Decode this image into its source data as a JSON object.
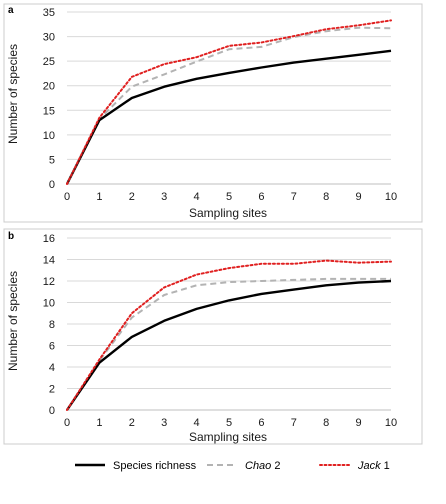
{
  "legend": {
    "series_labels": [
      {
        "parts": [
          {
            "text": "Species richness",
            "italic": false
          }
        ]
      },
      {
        "parts": [
          {
            "text": "Chao",
            "italic": true
          },
          {
            "text": " 2",
            "italic": false
          }
        ]
      },
      {
        "parts": [
          {
            "text": "Jack",
            "italic": true
          },
          {
            "text": " 1",
            "italic": false
          }
        ]
      }
    ]
  },
  "chart_data": [
    {
      "panel": "a",
      "type": "line",
      "xlabel": "Sampling sites",
      "ylabel": "Number of species",
      "x": [
        0,
        1,
        2,
        3,
        4,
        5,
        6,
        7,
        8,
        9,
        10
      ],
      "xlim": [
        0,
        10
      ],
      "ylim": [
        0,
        35
      ],
      "yticks": [
        0,
        5,
        10,
        15,
        20,
        25,
        30,
        35
      ],
      "grid": "horizontal",
      "series": [
        {
          "values": [
            0,
            13.0,
            17.5,
            19.8,
            21.4,
            22.6,
            23.7,
            24.7,
            25.5,
            26.3,
            27.1
          ],
          "color": "#000000",
          "style": "solid"
        },
        {
          "values": [
            0,
            13.2,
            19.8,
            22.3,
            24.9,
            27.4,
            27.9,
            29.9,
            31.1,
            31.8,
            31.7
          ],
          "color": "#b3b3b3",
          "style": "dashed"
        },
        {
          "values": [
            0,
            13.5,
            21.8,
            24.4,
            25.8,
            28.1,
            28.8,
            30.1,
            31.5,
            32.3,
            33.3
          ],
          "color": "#e02020",
          "style": "dotted"
        }
      ]
    },
    {
      "panel": "b",
      "type": "line",
      "xlabel": "Sampling sites",
      "ylabel": "Number of species",
      "x": [
        0,
        1,
        2,
        3,
        4,
        5,
        6,
        7,
        8,
        9,
        10
      ],
      "xlim": [
        0,
        10
      ],
      "ylim": [
        0,
        16
      ],
      "yticks": [
        0,
        2,
        4,
        6,
        8,
        10,
        12,
        14,
        16
      ],
      "grid": "horizontal",
      "series": [
        {
          "values": [
            0,
            4.4,
            6.8,
            8.3,
            9.4,
            10.2,
            10.8,
            11.2,
            11.6,
            11.85,
            12.0
          ],
          "color": "#000000",
          "style": "solid"
        },
        {
          "values": [
            0,
            4.6,
            8.6,
            10.7,
            11.6,
            11.9,
            12.0,
            12.1,
            12.2,
            12.2,
            12.2
          ],
          "color": "#b3b3b3",
          "style": "dashed"
        },
        {
          "values": [
            0,
            4.7,
            9.0,
            11.4,
            12.6,
            13.2,
            13.6,
            13.6,
            13.9,
            13.7,
            13.8
          ],
          "color": "#e02020",
          "style": "dotted"
        }
      ]
    }
  ]
}
